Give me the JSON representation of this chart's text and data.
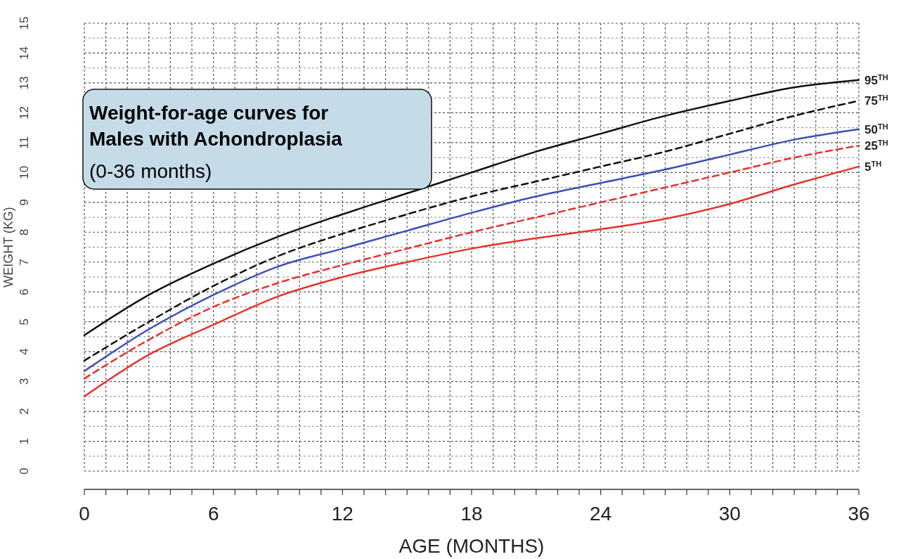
{
  "chart_data": {
    "type": "line",
    "title": "Weight-for-age curves for Males with Achondroplasia",
    "subtitle": "(0-36 months)",
    "xlabel": "AGE (MONTHS)",
    "ylabel": "WEIGHT (KG)",
    "x": [
      0,
      3,
      6,
      9,
      12,
      15,
      18,
      21,
      24,
      27,
      30,
      33,
      36
    ],
    "series": [
      {
        "name": "95$^{TH}$",
        "color": "#111111",
        "line_style": "solid",
        "values": [
          4.55,
          5.9,
          6.95,
          7.85,
          8.6,
          9.3,
          10.0,
          10.7,
          11.3,
          11.9,
          12.4,
          12.85,
          13.1
        ]
      },
      {
        "name": "75$^{TH}$",
        "color": "#111111",
        "line_style": "dashed",
        "values": [
          3.7,
          5.0,
          6.2,
          7.2,
          7.95,
          8.6,
          9.2,
          9.7,
          10.2,
          10.7,
          11.3,
          11.9,
          12.4
        ]
      },
      {
        "name": "50$^{TH}$",
        "color": "#3b4fb8",
        "line_style": "solid",
        "values": [
          3.35,
          4.75,
          5.9,
          6.85,
          7.45,
          8.05,
          8.65,
          9.2,
          9.65,
          10.1,
          10.6,
          11.1,
          11.45
        ]
      },
      {
        "name": "25$^{TH}$",
        "color": "#e8302a",
        "line_style": "dashed",
        "values": [
          3.1,
          4.4,
          5.5,
          6.3,
          6.9,
          7.45,
          8.0,
          8.5,
          9.0,
          9.5,
          10.0,
          10.5,
          10.9
        ]
      },
      {
        "name": "5$^{TH}$",
        "color": "#e8302a",
        "line_style": "solid",
        "values": [
          2.5,
          3.9,
          4.9,
          5.85,
          6.5,
          7.0,
          7.45,
          7.8,
          8.1,
          8.45,
          8.95,
          9.6,
          10.2
        ]
      }
    ],
    "xlim": [
      0,
      36
    ],
    "xticks": [
      0,
      {
        "value": 1,
        "label": null
      },
      {
        "value": 2,
        "label": null
      },
      {
        "value": 3,
        "label": null
      },
      {
        "value": 4,
        "label": null
      },
      {
        "value": 5,
        "label": null
      },
      6,
      {
        "value": 7,
        "label": null
      },
      {
        "value": 8,
        "label": null
      },
      {
        "value": 9,
        "label": null
      },
      {
        "value": 10,
        "label": null
      },
      {
        "value": 11,
        "label": null
      },
      12,
      {
        "value": 13,
        "label": null
      },
      {
        "value": 14,
        "label": null
      },
      {
        "value": 15,
        "label": null
      },
      {
        "value": 16,
        "label": null
      },
      {
        "value": 17,
        "label": null
      },
      18,
      {
        "value": 19,
        "label": null
      },
      {
        "value": 20,
        "label": null
      },
      {
        "value": 21,
        "label": null
      },
      {
        "value": 22,
        "label": null
      },
      {
        "value": 23,
        "label": null
      },
      24,
      {
        "value": 25,
        "label": null
      },
      {
        "value": 26,
        "label": null
      },
      {
        "value": 27,
        "label": null
      },
      {
        "value": 28,
        "label": null
      },
      {
        "value": 29,
        "label": null
      },
      30,
      {
        "value": 31,
        "label": null
      },
      {
        "value": 32,
        "label": null
      },
      {
        "value": 33,
        "label": null
      },
      {
        "value": 34,
        "label": null
      },
      {
        "value": 35,
        "label": null
      },
      36
    ],
    "ylim": [
      0,
      15
    ],
    "yticks": [
      0,
      1,
      2,
      3,
      4,
      5,
      6,
      7,
      8,
      9,
      10,
      11,
      12,
      13,
      14,
      15
    ],
    "grid": true
  }
}
